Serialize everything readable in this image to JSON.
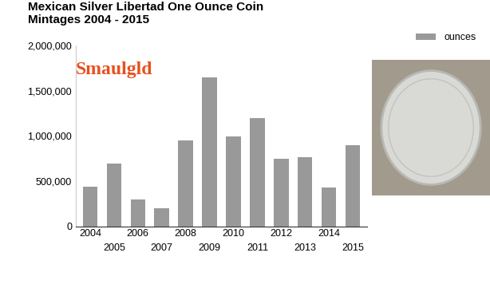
{
  "chart_data": {
    "type": "bar",
    "title": "Mexican Silver Libertad One Ounce Coin Mintages 2004 - 2015",
    "annotations": [
      "Smaulgld"
    ],
    "categories": [
      "2004",
      "2005",
      "2006",
      "2007",
      "2008",
      "2009",
      "2010",
      "2011",
      "2012",
      "2013",
      "2014",
      "2015"
    ],
    "series": [
      {
        "name": "ounces",
        "color": "#999999",
        "values": [
          440000,
          700000,
          300000,
          200000,
          950000,
          1650000,
          1000000,
          1200000,
          750000,
          770000,
          430000,
          900000
        ]
      }
    ],
    "ylim": [
      0,
      2000000
    ],
    "yticks": [
      0,
      {
        "value": 500000,
        "label": "500,000"
      },
      {
        "value": 1000000,
        "label": "1,000,000"
      },
      {
        "value": 1500000,
        "label": "1,500,000"
      },
      {
        "value": 2000000,
        "label": "2,000,000"
      }
    ],
    "grid": false,
    "legend": "upper right"
  }
}
